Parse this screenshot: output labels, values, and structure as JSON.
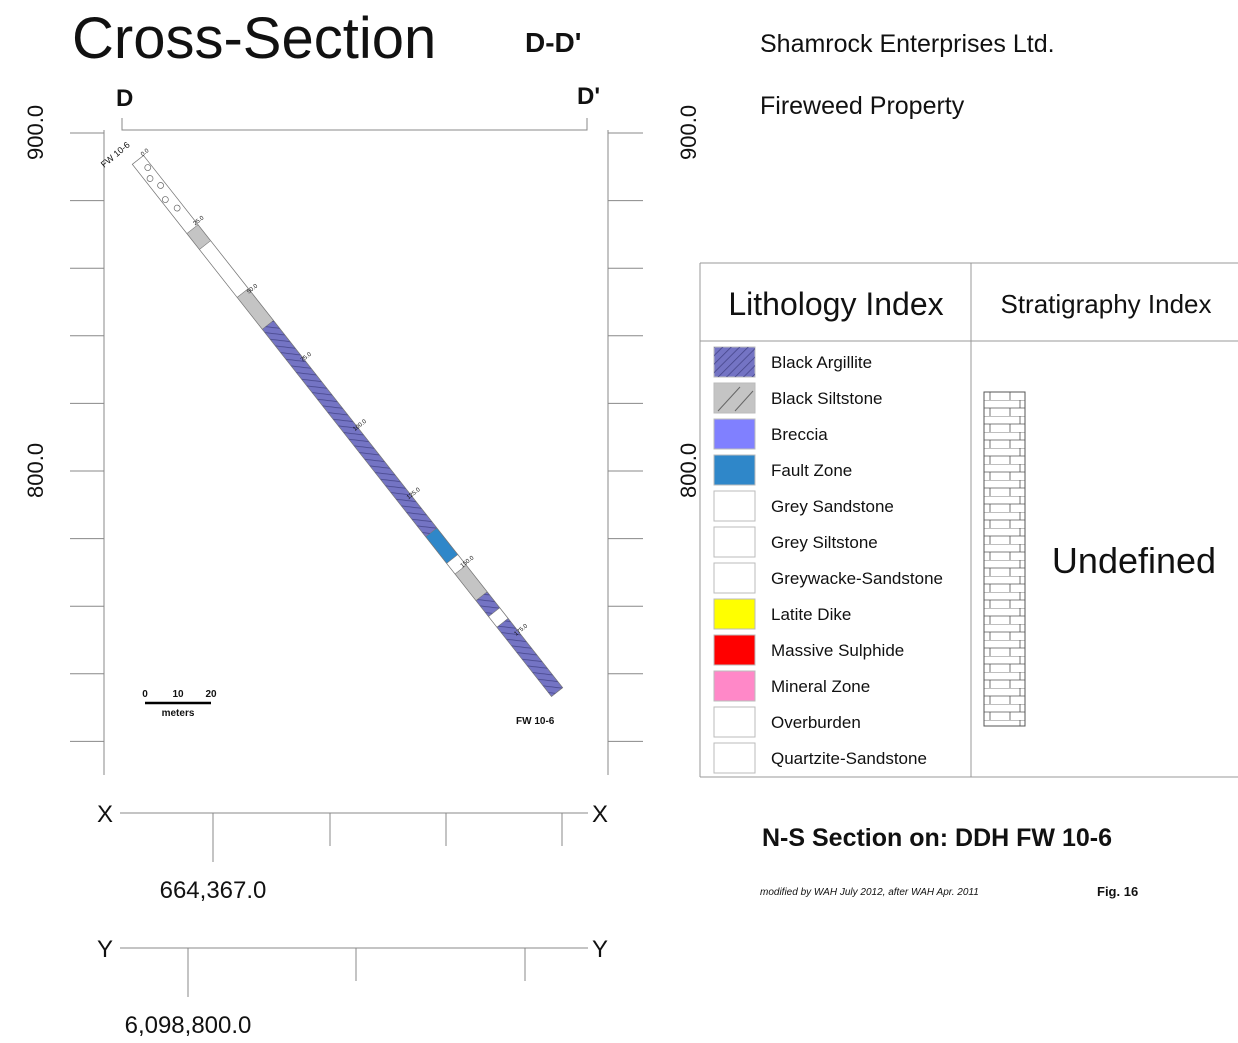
{
  "title": "Cross-Section",
  "section_label": "D-D'",
  "section_ends": [
    "D",
    "D'"
  ],
  "company": "Shamrock Enterprises Ltd.",
  "property": "Fireweed Property",
  "elevation_labels": [
    "900.0",
    "800.0"
  ],
  "hole": {
    "name": "FW 10-6",
    "depth_labels": [
      "0.0",
      "25.0",
      "50.0",
      "75.0",
      "100.0",
      "125.0",
      "150.0",
      "175.0"
    ]
  },
  "scale_bar": {
    "ticks": [
      "0",
      "10",
      "20"
    ],
    "unit": "meters"
  },
  "x_axis": {
    "label": "X",
    "value": "664,367.0"
  },
  "y_axis": {
    "label": "Y",
    "value": "6,098,800.0"
  },
  "lithology_index": {
    "title": "Lithology Index",
    "items": [
      {
        "name": "Black Argillite",
        "color": "#7474c4"
      },
      {
        "name": "Black Siltstone",
        "color": "#c4c4c4"
      },
      {
        "name": "Breccia",
        "color": "#8080ff"
      },
      {
        "name": "Fault Zone",
        "color": "#2f87c9"
      },
      {
        "name": "Grey Sandstone",
        "color": "#ffffff"
      },
      {
        "name": "Grey Siltstone",
        "color": "#ffffff"
      },
      {
        "name": "Greywacke-Sandstone",
        "color": "#ffffff"
      },
      {
        "name": "Latite Dike",
        "color": "#ffff00"
      },
      {
        "name": "Massive Sulphide",
        "color": "#ff0000"
      },
      {
        "name": "Mineral Zone",
        "color": "#ff88c8"
      },
      {
        "name": "Overburden",
        "color": "#ffffff"
      },
      {
        "name": "Quartzite-Sandstone",
        "color": "#ffffff"
      }
    ]
  },
  "stratigraphy_index": {
    "title": "Stratigraphy Index",
    "unit": "Undefined"
  },
  "section_title": "N-S Section on: DDH FW 10-6",
  "credit": "modified by WAH July 2012, after WAH Apr. 2011",
  "figure": "Fig. 16"
}
